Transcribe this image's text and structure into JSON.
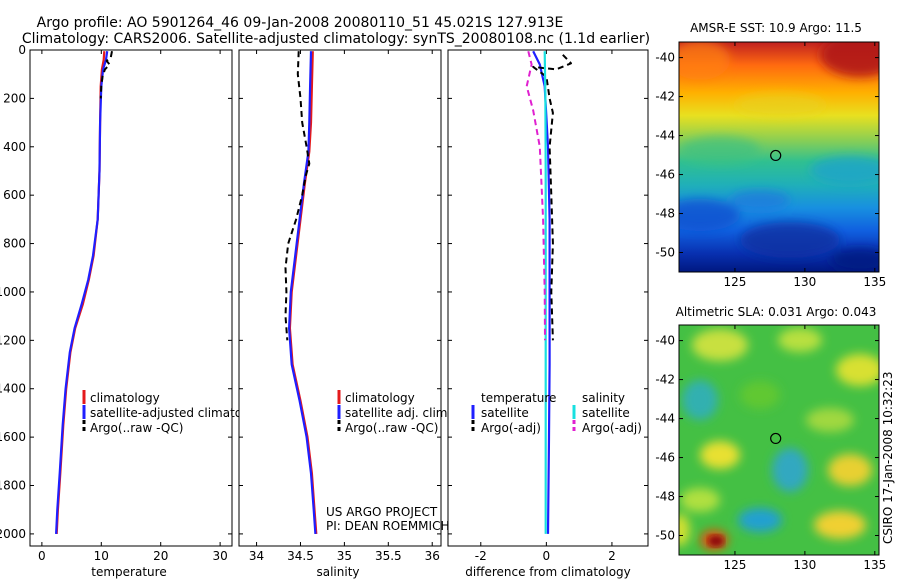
{
  "header": {
    "title_line1": "Argo profile: AO 5901264_46 09-Jan-2008 20080110_51 45.021S 127.913E",
    "title_line2": "Climatology: CARS2006. Satellite-adjusted climatology: synTS_20080108.nc (1.1d earlier)"
  },
  "side_stamp": "CSIRO 17-Jan-2008 10:32:23",
  "project_note": {
    "line1": "US ARGO PROJECT",
    "line2": "PI: DEAN ROEMMICH"
  },
  "colors": {
    "red": "#e41a1c",
    "blue": "#1f1fff",
    "black": "#000000",
    "cyan": "#18e0e0",
    "magenta": "#e020d0"
  },
  "chart_data": [
    {
      "type": "line",
      "id": "temperature",
      "xlabel": "temperature",
      "ylabel": "",
      "xlim": [
        -2,
        32
      ],
      "ylim": [
        2050,
        0
      ],
      "xticks": [
        0,
        10,
        20,
        30
      ],
      "xtick_labels": [
        "0",
        "10",
        "20",
        "30"
      ],
      "yticks": [
        0,
        200,
        400,
        600,
        800,
        1000,
        1200,
        1400,
        1600,
        1800,
        2000
      ],
      "legend": [
        "climatology",
        "satellite-adjusted climatology",
        "Argo(..raw -QC)"
      ],
      "series": [
        {
          "name": "climatology",
          "color": "red",
          "dash": false,
          "points": [
            [
              10.5,
              5
            ],
            [
              10.4,
              40
            ],
            [
              10.1,
              80
            ],
            [
              9.9,
              150
            ],
            [
              9.8,
              300
            ],
            [
              9.7,
              500
            ],
            [
              9.4,
              700
            ],
            [
              8.7,
              850
            ],
            [
              7.9,
              950
            ],
            [
              6.9,
              1050
            ],
            [
              5.6,
              1150
            ],
            [
              4.8,
              1250
            ],
            [
              4.1,
              1400
            ],
            [
              3.6,
              1550
            ],
            [
              3.1,
              1750
            ],
            [
              2.7,
              1900
            ],
            [
              2.5,
              2000
            ]
          ]
        },
        {
          "name": "satellite-adjusted climatology",
          "color": "blue",
          "dash": false,
          "points": [
            [
              11.0,
              5
            ],
            [
              10.8,
              40
            ],
            [
              10.3,
              80
            ],
            [
              10.0,
              150
            ],
            [
              9.8,
              300
            ],
            [
              9.7,
              500
            ],
            [
              9.4,
              700
            ],
            [
              8.6,
              850
            ],
            [
              7.8,
              950
            ],
            [
              6.7,
              1050
            ],
            [
              5.5,
              1150
            ],
            [
              4.7,
              1250
            ],
            [
              4.0,
              1400
            ],
            [
              3.5,
              1550
            ],
            [
              3.0,
              1750
            ],
            [
              2.6,
              1900
            ],
            [
              2.4,
              2000
            ]
          ]
        },
        {
          "name": "Argo(..raw -QC)",
          "color": "black",
          "dash": true,
          "points": [
            [
              11.8,
              5
            ],
            [
              11.6,
              30
            ],
            [
              10.9,
              45
            ],
            [
              11.4,
              60
            ],
            [
              10.6,
              80
            ],
            [
              10.2,
              110
            ],
            [
              10.0,
              150
            ],
            [
              9.9,
              200
            ]
          ]
        }
      ]
    },
    {
      "type": "line",
      "id": "salinity",
      "xlabel": "salinity",
      "xlim": [
        33.8,
        36.1
      ],
      "ylim": [
        2050,
        0
      ],
      "xticks": [
        34,
        34.5,
        35,
        35.5,
        36
      ],
      "xtick_labels": [
        "34",
        "34.5",
        "35",
        "35.5",
        "36"
      ],
      "legend": [
        "climatology",
        "satellite adj. clim.",
        "Argo(..raw -QC)"
      ],
      "series": [
        {
          "name": "climatology",
          "color": "red",
          "dash": false,
          "points": [
            [
              34.64,
              5
            ],
            [
              34.63,
              150
            ],
            [
              34.62,
              300
            ],
            [
              34.6,
              420
            ],
            [
              34.55,
              550
            ],
            [
              34.5,
              700
            ],
            [
              34.45,
              850
            ],
            [
              34.4,
              1000
            ],
            [
              34.38,
              1150
            ],
            [
              34.41,
              1300
            ],
            [
              34.5,
              1450
            ],
            [
              34.58,
              1600
            ],
            [
              34.63,
              1750
            ],
            [
              34.66,
              1900
            ],
            [
              34.68,
              2000
            ]
          ]
        },
        {
          "name": "satellite adj. clim.",
          "color": "blue",
          "dash": false,
          "points": [
            [
              34.62,
              5
            ],
            [
              34.61,
              150
            ],
            [
              34.6,
              300
            ],
            [
              34.59,
              420
            ],
            [
              34.54,
              550
            ],
            [
              34.49,
              700
            ],
            [
              34.44,
              850
            ],
            [
              34.39,
              1000
            ],
            [
              34.37,
              1150
            ],
            [
              34.4,
              1300
            ],
            [
              34.49,
              1450
            ],
            [
              34.57,
              1600
            ],
            [
              34.62,
              1750
            ],
            [
              34.65,
              1900
            ],
            [
              34.67,
              2000
            ]
          ]
        },
        {
          "name": "Argo(..raw -QC)",
          "color": "black",
          "dash": true,
          "points": [
            [
              34.48,
              5
            ],
            [
              34.47,
              100
            ],
            [
              34.5,
              200
            ],
            [
              34.52,
              300
            ],
            [
              34.57,
              400
            ],
            [
              34.6,
              470
            ],
            [
              34.56,
              520
            ],
            [
              34.52,
              600
            ],
            [
              34.45,
              700
            ],
            [
              34.36,
              800
            ],
            [
              34.33,
              900
            ],
            [
              34.34,
              1000
            ],
            [
              34.33,
              1100
            ],
            [
              34.35,
              1200
            ]
          ]
        }
      ]
    },
    {
      "type": "line",
      "id": "difference",
      "xlabel": "difference from climatology",
      "xlim": [
        -3,
        3.1
      ],
      "ylim": [
        2050,
        0
      ],
      "xticks": [
        -2,
        0,
        2
      ],
      "xtick_labels": [
        "-2",
        "0",
        "2"
      ],
      "legend_left_title": "temperature",
      "legend_right_title": "salinity",
      "legend": [
        "satellite",
        "Argo(-adj)",
        "satellite",
        "Argo(-adj)"
      ],
      "series": [
        {
          "name": "temperature satellite",
          "color": "blue",
          "dash": false,
          "points": [
            [
              -0.4,
              5
            ],
            [
              -0.2,
              60
            ],
            [
              -0.05,
              150
            ],
            [
              0.05,
              400
            ],
            [
              0.1,
              700
            ],
            [
              0.1,
              1000
            ],
            [
              0.1,
              1300
            ],
            [
              0.08,
              1600
            ],
            [
              0.05,
              2000
            ]
          ]
        },
        {
          "name": "temperature Argo(-adj)",
          "color": "black",
          "dash": true,
          "points": [
            [
              0.5,
              20
            ],
            [
              0.75,
              55
            ],
            [
              0.3,
              80
            ],
            [
              -0.4,
              70
            ],
            [
              0.0,
              110
            ],
            [
              0.1,
              200
            ],
            [
              0.2,
              260
            ],
            [
              0.1,
              400
            ],
            [
              0.15,
              600
            ],
            [
              0.2,
              800
            ],
            [
              0.15,
              1000
            ],
            [
              0.2,
              1200
            ]
          ]
        },
        {
          "name": "salinity satellite",
          "color": "cyan",
          "dash": false,
          "points": [
            [
              -0.05,
              5
            ],
            [
              -0.03,
              200
            ],
            [
              -0.02,
              500
            ],
            [
              -0.02,
              1000
            ],
            [
              -0.02,
              1500
            ],
            [
              -0.02,
              2000
            ]
          ]
        },
        {
          "name": "salinity Argo(-adj)",
          "color": "magenta",
          "dash": true,
          "points": [
            [
              -0.55,
              5
            ],
            [
              -0.45,
              60
            ],
            [
              -0.6,
              150
            ],
            [
              -0.4,
              250
            ],
            [
              -0.2,
              400
            ],
            [
              -0.1,
              700
            ],
            [
              -0.05,
              1000
            ],
            [
              -0.04,
              1200
            ]
          ]
        }
      ]
    },
    {
      "type": "heatmap",
      "id": "sst-map",
      "title": "AMSR-E SST: 10.9 Argo: 11.5",
      "xlim": [
        121,
        135.3
      ],
      "ylim": [
        -51,
        -39.2
      ],
      "xticks": [
        125,
        130,
        135
      ],
      "yticks": [
        -40,
        -42,
        -44,
        -46,
        -48,
        -50
      ],
      "marker": [
        127.913,
        -45.021
      ]
    },
    {
      "type": "heatmap",
      "id": "sla-map",
      "title": "Altimetric SLA: 0.031 Argo: 0.043",
      "xlim": [
        121,
        135.3
      ],
      "ylim": [
        -51,
        -39.2
      ],
      "xticks": [
        125,
        130,
        135
      ],
      "yticks": [
        -40,
        -42,
        -44,
        -46,
        -48,
        -50
      ],
      "marker": [
        127.913,
        -45.021
      ]
    }
  ]
}
